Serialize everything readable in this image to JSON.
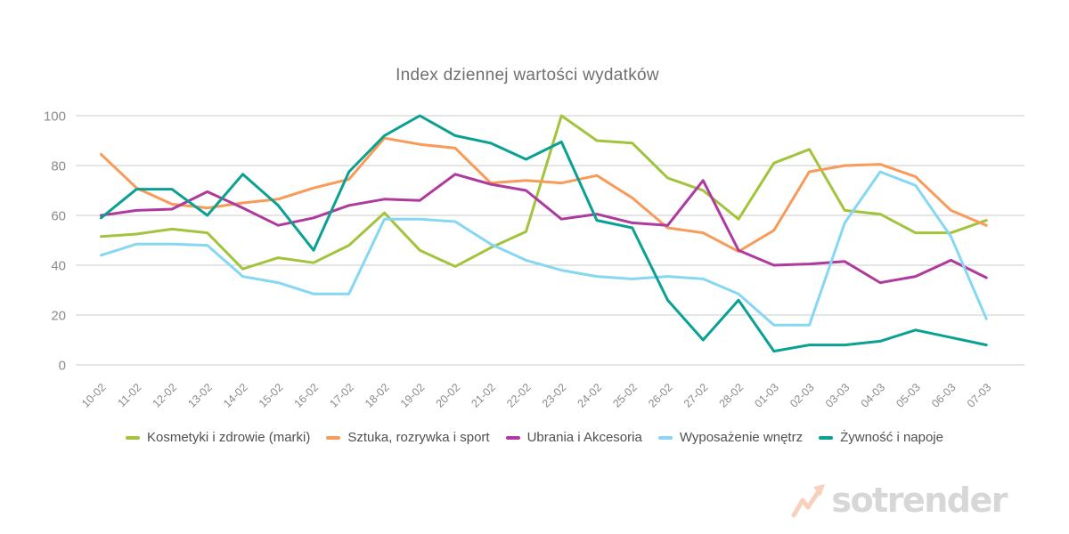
{
  "title": "Index dziennej wartości wydatków",
  "watermark": {
    "text": "sotrender",
    "arrow_color": "#f8d0bd",
    "text_color": "#d7d7d7"
  },
  "axes": {
    "y_label_color": "#8b8b8b",
    "x_label_color": "#8b8b8b",
    "grid_color": "#cbcbcb"
  },
  "chart_data": {
    "type": "line",
    "title": "Index dziennej wartości wydatków",
    "xlabel": "",
    "ylabel": "",
    "ylim": [
      0,
      100
    ],
    "y_ticks": [
      0,
      20,
      40,
      60,
      80,
      100
    ],
    "grid": true,
    "legend_position": "bottom",
    "x_labels": [
      "10-02",
      "11-02",
      "12-02",
      "13-02",
      "14-02",
      "15-02",
      "16-02",
      "17-02",
      "18-02",
      "19-02",
      "20-02",
      "21-02",
      "22-02",
      "23-02",
      "24-02",
      "25-02",
      "26-02",
      "27-02",
      "28-02",
      "01-03",
      "02-03",
      "03-03",
      "04-03",
      "05-03",
      "06-03",
      "07-03"
    ],
    "series": [
      {
        "name": "Kosmetyki i zdrowie (marki)",
        "slug": "kosmetyki-i-zdrowie",
        "color": "#a2c43d",
        "values": [
          51.5,
          52.5,
          54.5,
          53,
          38.5,
          43,
          41,
          48,
          61,
          46,
          39.5,
          47,
          53.5,
          100,
          90,
          89,
          75,
          70,
          58.5,
          81,
          86.5,
          62,
          60.5,
          53,
          53,
          58
        ]
      },
      {
        "name": "Sztuka, rozrywka i sport",
        "slug": "sztuka-rozrywka-i-sport",
        "color": "#f89a58",
        "values": [
          84.5,
          71,
          64.5,
          63,
          65,
          66.5,
          71,
          74.5,
          91,
          88.5,
          87,
          73,
          74,
          73,
          76,
          67,
          55,
          53,
          45.5,
          54,
          77.5,
          80,
          80.5,
          75.5,
          62,
          56
        ]
      },
      {
        "name": "Ubrania i Akcesoria",
        "slug": "ubrania-i-akcesoria",
        "color": "#ae3a9d",
        "values": [
          60,
          62,
          62.5,
          69.5,
          63,
          56,
          59,
          64,
          66.5,
          66,
          76.5,
          72.5,
          70,
          58.5,
          60.5,
          57,
          56,
          74,
          46,
          40,
          40.5,
          41.5,
          33,
          35.5,
          42,
          35
        ]
      },
      {
        "name": "Wyposażenie wnętrz",
        "slug": "wyposazenie-wnetrz",
        "color": "#86d7f4",
        "values": [
          44,
          48.5,
          48.5,
          48,
          35.5,
          33,
          28.5,
          28.5,
          58.5,
          58.5,
          57.5,
          48.5,
          42,
          38,
          35.5,
          34.5,
          35.5,
          34.5,
          28.5,
          16,
          16,
          57,
          77.5,
          72,
          51.5,
          18.5
        ]
      },
      {
        "name": "Żywność i napoje",
        "slug": "zywnosc-i-napoje",
        "color": "#0aa092",
        "values": [
          59,
          70.5,
          70.5,
          60,
          76.5,
          64,
          46,
          77.5,
          92,
          100,
          92,
          89,
          82.5,
          89.5,
          58,
          55,
          26,
          10,
          26,
          5.5,
          8,
          8,
          9.5,
          14,
          11,
          8
        ]
      }
    ]
  }
}
